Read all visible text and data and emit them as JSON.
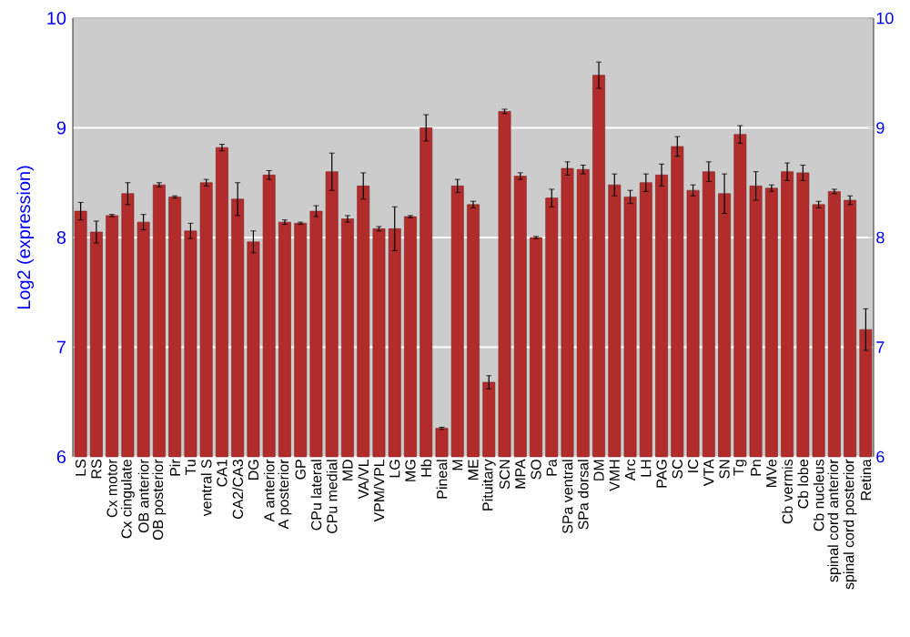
{
  "chart_data": {
    "type": "bar",
    "ylabel": "Log2 (expression)",
    "categories": [
      "LS",
      "RS",
      "Cx motor",
      "Cx cingulate",
      "OB anterior",
      "OB posterior",
      "Pir",
      "Tu",
      "ventral S",
      "CA1",
      "CA2/CA3",
      "DG",
      "A anterior",
      "A posterior",
      "GP",
      "CPu lateral",
      "CPu medial",
      "MD",
      "VA/VL",
      "VPM/VPL",
      "LG",
      "MG",
      "Hb",
      "Pineal",
      "M",
      "ME",
      "Pituitary",
      "SCN",
      "MPA",
      "SO",
      "Pa",
      "SPa ventral",
      "SPa dorsal",
      "DM",
      "VMH",
      "Arc",
      "LH",
      "PAG",
      "SC",
      "IC",
      "VTA",
      "SN",
      "Tg",
      "Pn",
      "MVe",
      "Cb vermis",
      "Cb lobe",
      "Cb nucleus",
      "spinal cord anterior",
      "spinal cord posterior",
      "Retina"
    ],
    "values": [
      8.24,
      8.05,
      8.2,
      8.4,
      8.14,
      8.48,
      8.37,
      8.06,
      8.5,
      8.82,
      8.35,
      7.96,
      8.57,
      8.14,
      8.13,
      8.24,
      8.6,
      8.17,
      8.47,
      8.08,
      8.08,
      8.19,
      9.0,
      6.26,
      8.47,
      8.3,
      6.68,
      9.15,
      8.56,
      8.0,
      8.36,
      8.63,
      8.62,
      9.48,
      8.48,
      8.37,
      8.5,
      8.57,
      8.83,
      8.43,
      8.6,
      8.4,
      8.94,
      8.47,
      8.45,
      8.6,
      8.59,
      8.3,
      8.42,
      8.34,
      7.16
    ],
    "errors": [
      0.08,
      0.1,
      0.01,
      0.1,
      0.07,
      0.02,
      0.01,
      0.07,
      0.03,
      0.03,
      0.15,
      0.1,
      0.04,
      0.02,
      0.01,
      0.05,
      0.17,
      0.03,
      0.12,
      0.02,
      0.2,
      0.01,
      0.12,
      0.01,
      0.06,
      0.03,
      0.06,
      0.02,
      0.03,
      0.01,
      0.08,
      0.06,
      0.04,
      0.12,
      0.1,
      0.06,
      0.08,
      0.1,
      0.09,
      0.05,
      0.09,
      0.18,
      0.08,
      0.13,
      0.03,
      0.08,
      0.07,
      0.03,
      0.02,
      0.04,
      0.19
    ],
    "color": "#b22c2c",
    "ylim": [
      6,
      10
    ],
    "yticks": [
      6,
      7,
      8,
      9,
      10
    ],
    "y2lim": [
      6,
      10
    ],
    "y2ticks": [
      6,
      7,
      8,
      9,
      10
    ],
    "grid": "y"
  }
}
